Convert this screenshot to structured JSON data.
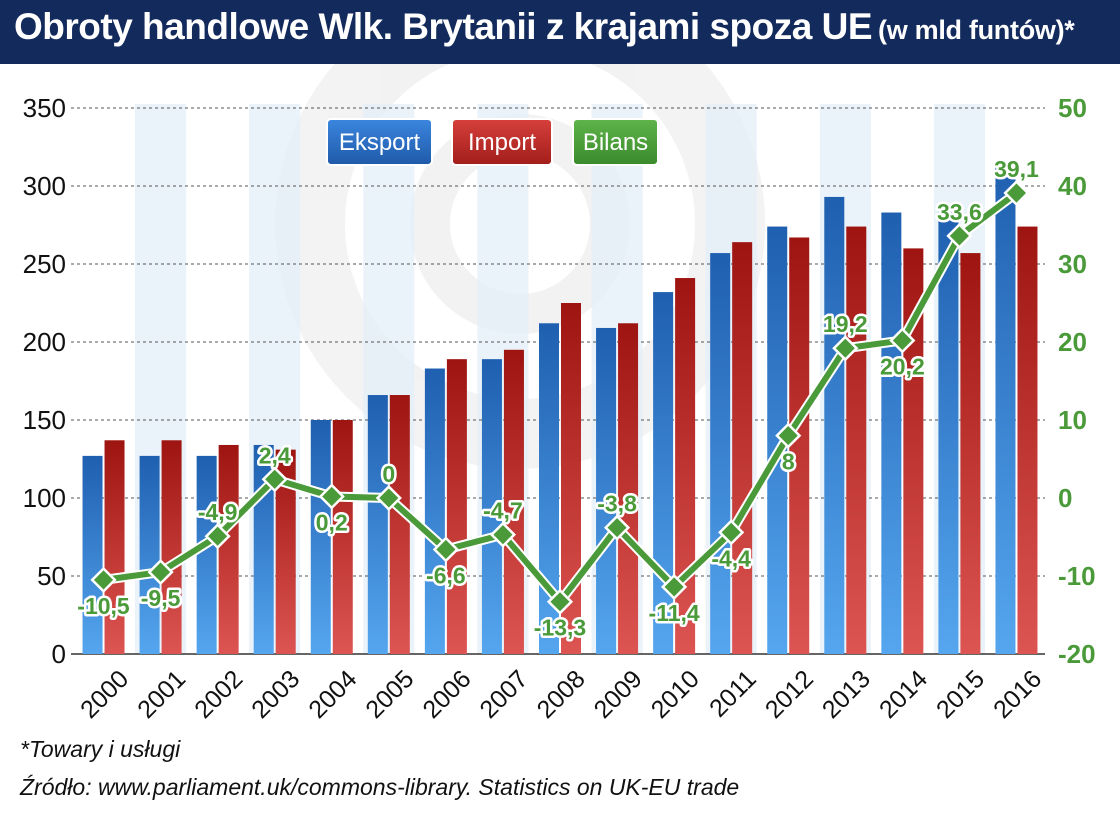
{
  "header": {
    "title": "Obroty handlowe Wlk. Brytanii z krajami spoza UE",
    "subtitle": "(w mld funtów)*"
  },
  "footnotes": {
    "note": "*Towary i usługi",
    "source": "Źródło: www.parliament.uk/commons-library. Statistics on UK-EU trade"
  },
  "colors": {
    "export": "#2f6fc4",
    "import": "#b82a28",
    "balance": "#4a9a3a",
    "grid": "#555555",
    "stripe": "#e3edf8"
  },
  "chart_data": {
    "type": "bar",
    "categories": [
      "2000",
      "2001",
      "2002",
      "2003",
      "2004",
      "2005",
      "2006",
      "2007",
      "2008",
      "2009",
      "2010",
      "2011",
      "2012",
      "2013",
      "2014",
      "2015",
      "2016"
    ],
    "series": [
      {
        "name": "Eksport",
        "type": "bar",
        "axis": "left",
        "values": [
          127,
          127,
          127,
          134,
          150,
          166,
          183,
          189,
          212,
          209,
          232,
          257,
          274,
          293,
          283,
          283,
          315
        ]
      },
      {
        "name": "Import",
        "type": "bar",
        "axis": "left",
        "values": [
          137,
          137,
          134,
          131,
          150,
          166,
          189,
          195,
          225,
          212,
          241,
          264,
          267,
          274,
          260,
          257,
          274
        ]
      },
      {
        "name": "Bilans",
        "type": "line",
        "axis": "right",
        "values": [
          -10.5,
          -9.5,
          -4.9,
          2.4,
          0.2,
          0,
          -6.6,
          -4.7,
          -13.3,
          -3.8,
          -11.4,
          -4.4,
          8,
          19.2,
          20.2,
          33.6,
          39.1
        ],
        "labels": [
          "-10,5",
          "-9,5",
          "-4,9",
          "2,4",
          "0,2",
          "0",
          "-6,6",
          "-4,7",
          "-13,3",
          "-3,8",
          "-11,4",
          "-4,4",
          "8",
          "19,2",
          "20,2",
          "33,6",
          "39,1"
        ]
      }
    ],
    "y_left": {
      "min": 0,
      "max": 350,
      "ticks": [
        "0",
        "50",
        "100",
        "150",
        "200",
        "250",
        "300",
        "350"
      ]
    },
    "y_right": {
      "min": -20,
      "max": 50,
      "ticks": [
        "-20",
        "-10",
        "0",
        "10",
        "20",
        "30",
        "40",
        "50"
      ]
    },
    "grid": true,
    "legend_position": "top-left"
  }
}
